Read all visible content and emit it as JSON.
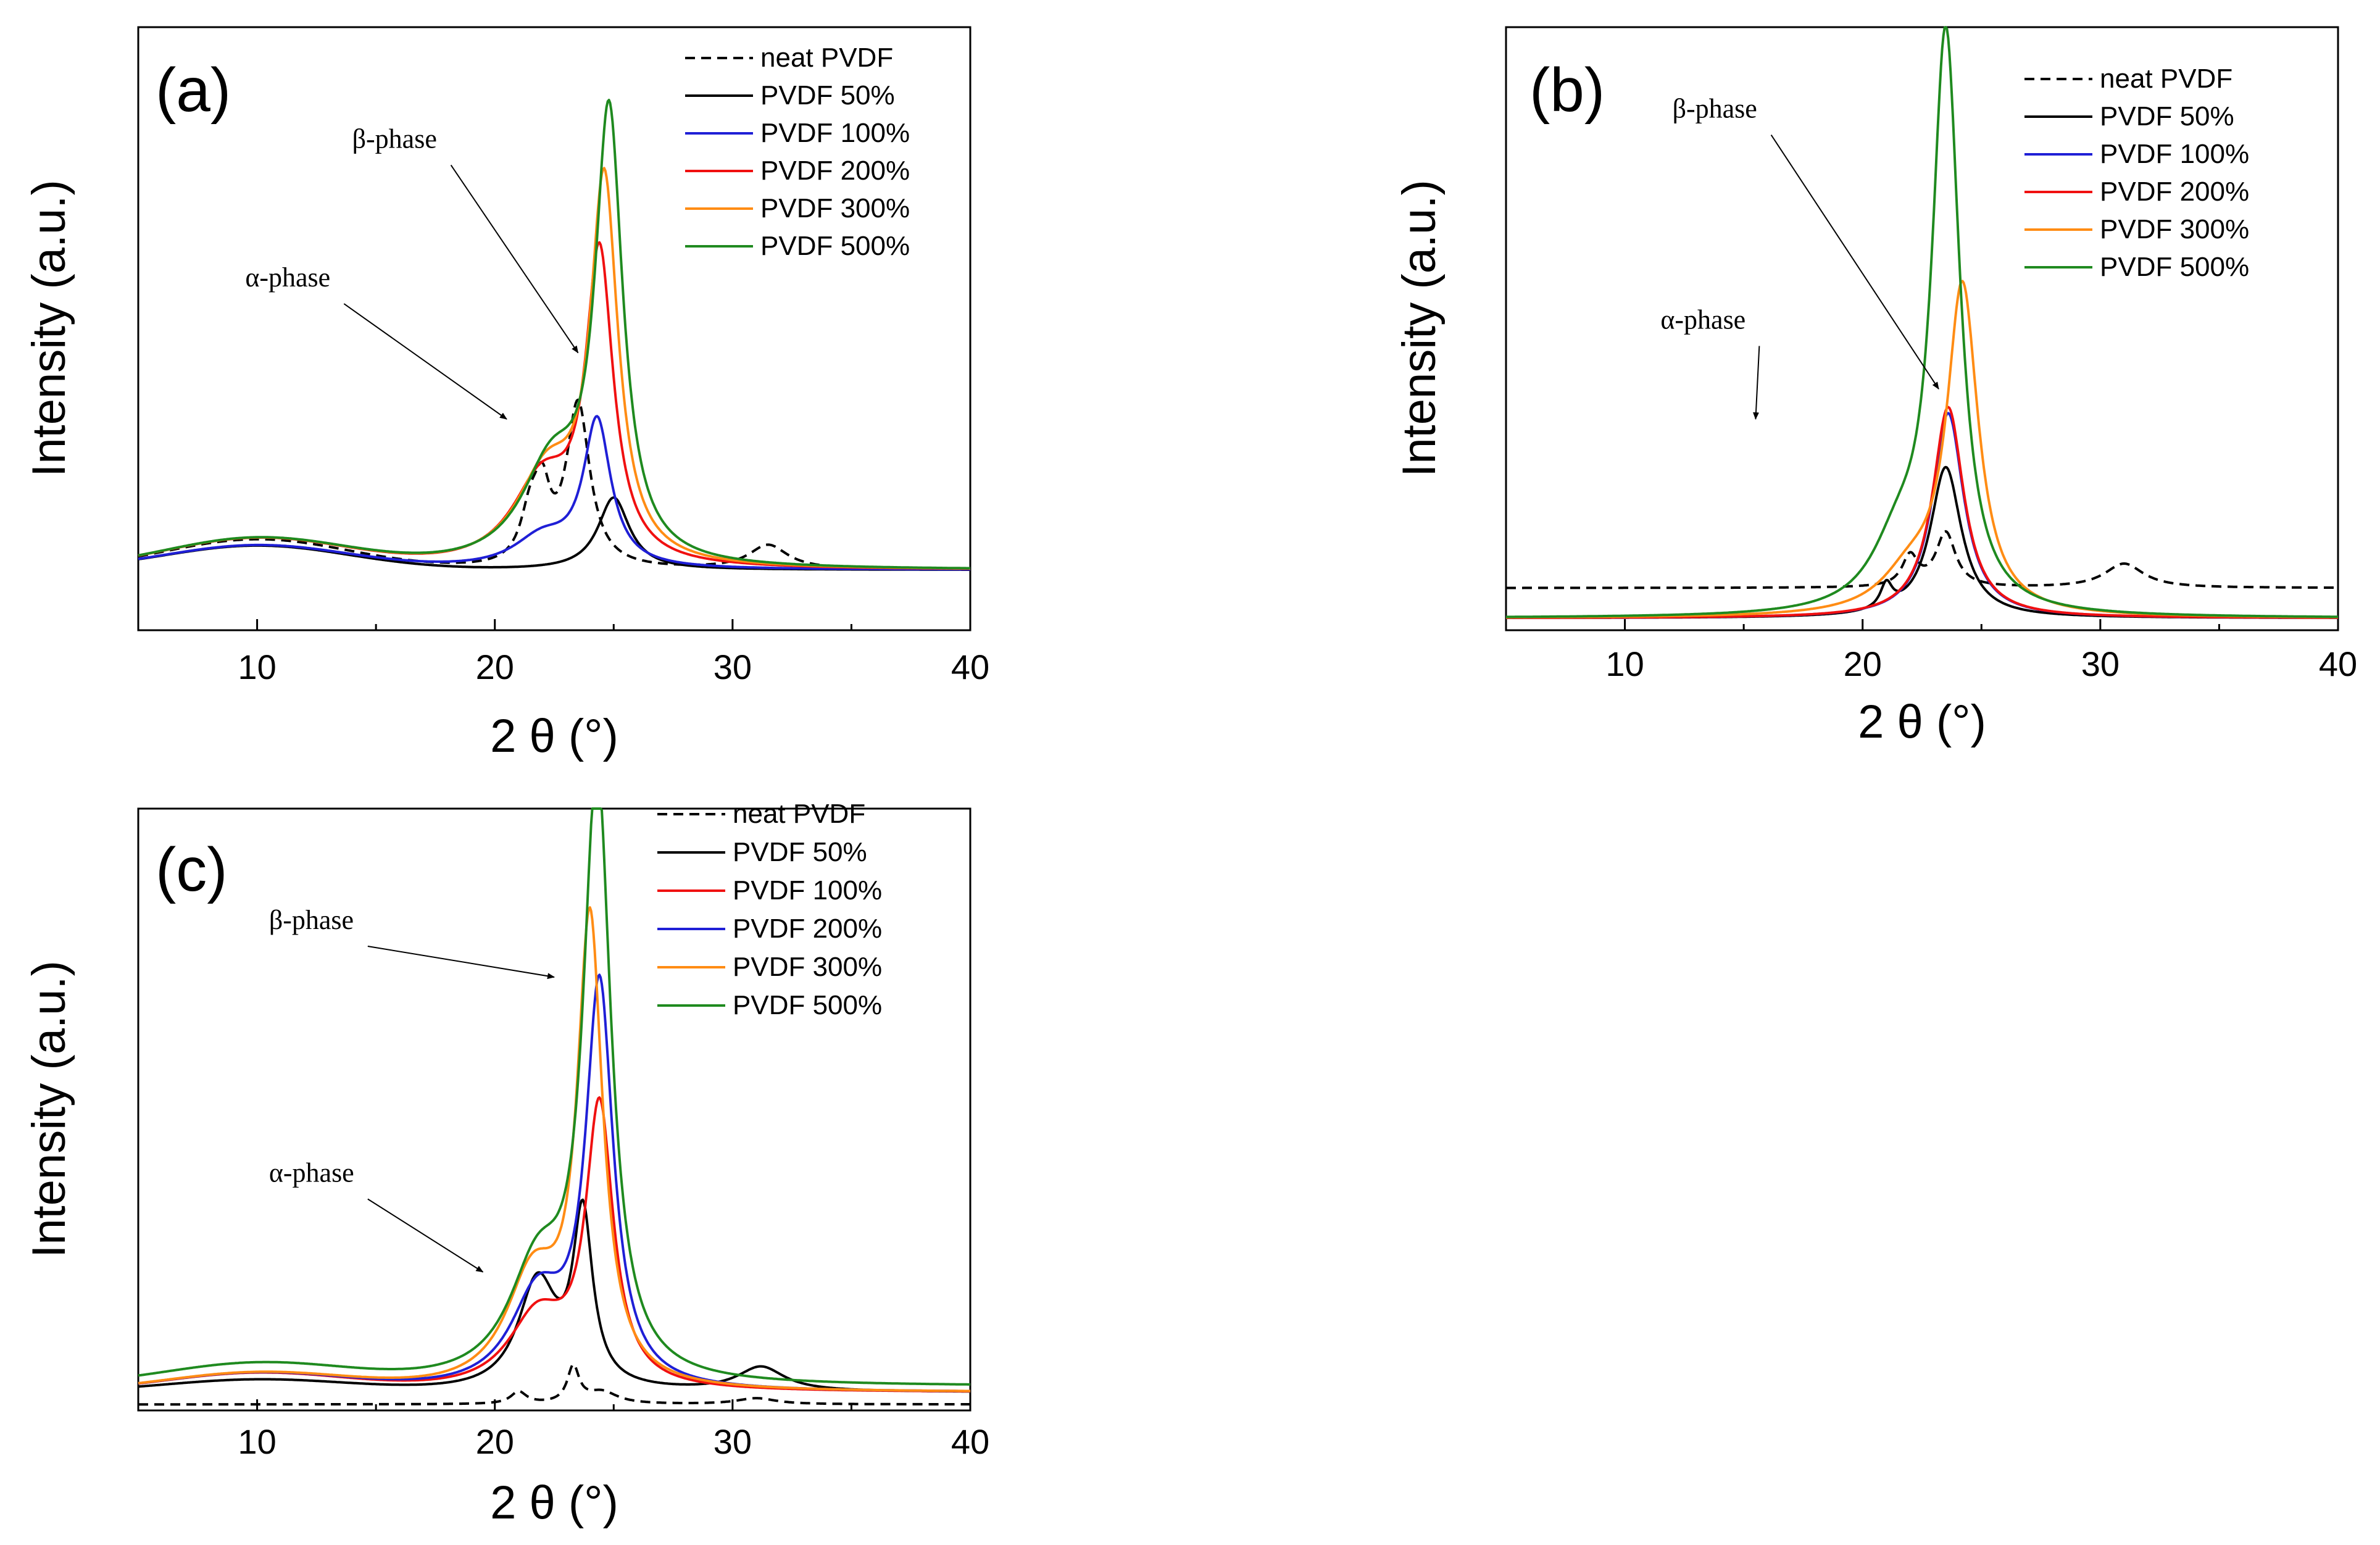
{
  "chart_data": [
    {
      "type": "line",
      "panel_label": "(a)",
      "xlabel": "2 θ (°)",
      "ylabel": "Intensity (a.u.)",
      "xlim": [
        5,
        40
      ],
      "ylim": [
        0,
        1
      ],
      "xticks": [
        10,
        20,
        30,
        40
      ],
      "legend": "top-right",
      "annotations": [
        {
          "text": "β-phase",
          "label_at": [
            14,
            0.8
          ],
          "arrow_to": [
            23.5,
            0.46
          ]
        },
        {
          "text": "α-phase",
          "label_at": [
            9.5,
            0.57
          ],
          "arrow_to": [
            20.5,
            0.35
          ]
        }
      ],
      "series": [
        {
          "name": "neat PVDF",
          "color": "#000000",
          "dash": true,
          "base": 0.1,
          "hump": 0.05,
          "peaks": [
            [
              21.5,
              0.08,
              0.5
            ],
            [
              22.0,
              0.1,
              0.4
            ],
            [
              23.5,
              0.27,
              0.6
            ],
            [
              31.5,
              0.04,
              1.0
            ]
          ]
        },
        {
          "name": "PVDF 50%",
          "color": "#000000",
          "dash": false,
          "base": 0.1,
          "hump": 0.04,
          "peaks": [
            [
              25.0,
              0.12,
              0.8
            ]
          ]
        },
        {
          "name": "PVDF 100%",
          "color": "#1f1fd6",
          "dash": false,
          "base": 0.1,
          "hump": 0.04,
          "peaks": [
            [
              24.3,
              0.24,
              0.7
            ],
            [
              22.0,
              0.05,
              1.5
            ]
          ]
        },
        {
          "name": "PVDF 200%",
          "color": "#f01010",
          "dash": false,
          "base": 0.1,
          "hump": 0.05,
          "peaks": [
            [
              24.4,
              0.5,
              0.7
            ],
            [
              22.0,
              0.14,
              1.6
            ]
          ]
        },
        {
          "name": "PVDF 300%",
          "color": "#ff8c14",
          "dash": false,
          "base": 0.1,
          "hump": 0.05,
          "peaks": [
            [
              24.6,
              0.62,
              0.7
            ],
            [
              22.2,
              0.15,
              1.6
            ]
          ]
        },
        {
          "name": "PVDF 500%",
          "color": "#1f8a1f",
          "dash": false,
          "base": 0.1,
          "hump": 0.05,
          "peaks": [
            [
              24.8,
              0.73,
              0.7
            ],
            [
              22.4,
              0.16,
              1.6
            ]
          ]
        }
      ]
    },
    {
      "type": "line",
      "panel_label": "(b)",
      "xlabel": "2 θ (°)",
      "ylabel": "Intensity (a.u.)",
      "xlim": [
        5,
        40
      ],
      "ylim": [
        0,
        1
      ],
      "xticks": [
        10,
        20,
        30,
        40
      ],
      "legend": "top-right",
      "annotations": [
        {
          "text": "β-phase",
          "label_at": [
            12,
            0.85
          ],
          "arrow_to": [
            23.2,
            0.4
          ]
        },
        {
          "text": "α-phase",
          "label_at": [
            11.5,
            0.5
          ],
          "arrow_to": [
            15.5,
            0.35
          ]
        }
      ],
      "series": [
        {
          "name": "neat PVDF",
          "color": "#000000",
          "dash": true,
          "base": 0.07,
          "hump": 0.0,
          "peaks": [
            [
              22.0,
              0.05,
              0.4
            ],
            [
              23.5,
              0.09,
              0.5
            ],
            [
              31.0,
              0.04,
              1.0
            ]
          ]
        },
        {
          "name": "PVDF 50%",
          "color": "#000000",
          "dash": false,
          "base": 0.02,
          "hump": 0.0,
          "peaks": [
            [
              23.5,
              0.25,
              0.8
            ],
            [
              21.0,
              0.04,
              0.3
            ]
          ]
        },
        {
          "name": "PVDF 100%",
          "color": "#1f1fd6",
          "dash": false,
          "base": 0.02,
          "hump": 0.0,
          "peaks": [
            [
              23.6,
              0.34,
              0.8
            ]
          ]
        },
        {
          "name": "PVDF 200%",
          "color": "#f01010",
          "dash": false,
          "base": 0.02,
          "hump": 0.0,
          "peaks": [
            [
              23.6,
              0.35,
              0.8
            ]
          ]
        },
        {
          "name": "PVDF 300%",
          "color": "#ff8c14",
          "dash": false,
          "base": 0.02,
          "hump": 0.0,
          "peaks": [
            [
              24.2,
              0.54,
              0.8
            ],
            [
              22.0,
              0.06,
              1.5
            ]
          ]
        },
        {
          "name": "PVDF 500%",
          "color": "#1f8a1f",
          "dash": false,
          "base": 0.02,
          "hump": 0.0,
          "peaks": [
            [
              23.5,
              0.95,
              0.7
            ],
            [
              21.5,
              0.1,
              1.4
            ]
          ]
        }
      ]
    },
    {
      "type": "line",
      "panel_label": "(c)",
      "xlabel": "2 θ (°)",
      "ylabel": "Intensity (a.u.)",
      "xlim": [
        5,
        40
      ],
      "ylim": [
        0,
        1
      ],
      "xticks": [
        10,
        20,
        30,
        40
      ],
      "legend": "top-right",
      "annotations": [
        {
          "text": "β-phase",
          "label_at": [
            10.5,
            0.8
          ],
          "arrow_to": [
            22.5,
            0.72
          ]
        },
        {
          "text": "α-phase",
          "label_at": [
            10.5,
            0.38
          ],
          "arrow_to": [
            19.5,
            0.23
          ]
        }
      ],
      "series": [
        {
          "name": "neat PVDF",
          "color": "#000000",
          "dash": true,
          "base": 0.01,
          "hump": 0.0,
          "peaks": [
            [
              21.0,
              0.02,
              0.4
            ],
            [
              23.3,
              0.06,
              0.3
            ],
            [
              24.5,
              0.02,
              0.8
            ],
            [
              31.0,
              0.01,
              1.0
            ]
          ]
        },
        {
          "name": "PVDF 50%",
          "color": "#000000",
          "dash": false,
          "base": 0.03,
          "hump": 0.02,
          "peaks": [
            [
              23.7,
              0.28,
              0.5
            ],
            [
              21.8,
              0.18,
              1.0
            ],
            [
              31.2,
              0.04,
              1.2
            ]
          ]
        },
        {
          "name": "PVDF 100%",
          "color": "#f01010",
          "dash": false,
          "base": 0.03,
          "hump": 0.03,
          "peaks": [
            [
              24.4,
              0.46,
              0.7
            ],
            [
              21.8,
              0.12,
              1.5
            ]
          ]
        },
        {
          "name": "PVDF 200%",
          "color": "#1f1fd6",
          "dash": false,
          "base": 0.03,
          "hump": 0.03,
          "peaks": [
            [
              24.4,
              0.66,
              0.7
            ],
            [
              21.8,
              0.15,
              1.4
            ]
          ]
        },
        {
          "name": "PVDF 300%",
          "color": "#ff8c14",
          "dash": false,
          "base": 0.03,
          "hump": 0.03,
          "peaks": [
            [
              24.0,
              0.76,
              0.65
            ],
            [
              21.6,
              0.18,
              1.4
            ]
          ]
        },
        {
          "name": "PVDF 500%",
          "color": "#1f8a1f",
          "dash": false,
          "base": 0.04,
          "hump": 0.035,
          "peaks": [
            [
              24.3,
              0.99,
              0.7
            ],
            [
              21.8,
              0.18,
              1.5
            ]
          ]
        }
      ]
    }
  ]
}
